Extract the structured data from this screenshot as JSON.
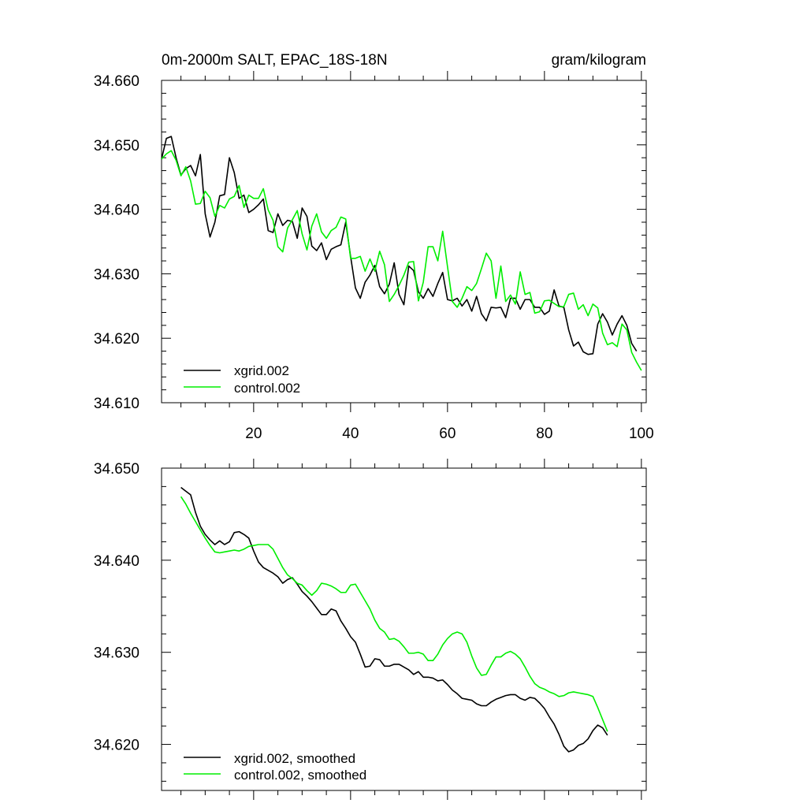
{
  "chart_data": [
    {
      "type": "line",
      "title": "0m-2000m SALT, EPAC_18S-18N",
      "units": "gram/kilogram",
      "xlim": [
        1,
        101
      ],
      "ylim": [
        34.61,
        34.66
      ],
      "x_ticks": [
        20,
        40,
        60,
        80,
        100
      ],
      "x_tick_labels": [
        "20",
        "40",
        "60",
        "80",
        "100"
      ],
      "y_ticks": [
        34.61,
        34.62,
        34.63,
        34.64,
        34.65,
        34.66
      ],
      "y_tick_labels": [
        "34.610",
        "34.620",
        "34.630",
        "34.640",
        "34.650",
        "34.660"
      ],
      "legend_position": "bottom-left",
      "series": [
        {
          "name": "xgrid.002",
          "color": "#000000",
          "x_start": 1,
          "values": [
            34.6478,
            34.651,
            34.6513,
            34.648,
            34.6453,
            34.6463,
            34.6468,
            34.6452,
            34.6485,
            34.6393,
            34.6357,
            34.638,
            34.6421,
            34.6423,
            34.648,
            34.6457,
            34.6417,
            34.6422,
            34.6395,
            34.64,
            34.6407,
            34.6416,
            34.6367,
            34.6364,
            34.6393,
            34.6375,
            34.6383,
            34.6381,
            34.6355,
            34.6402,
            34.6389,
            34.6343,
            34.6336,
            34.6348,
            34.6322,
            34.6338,
            34.6342,
            34.6345,
            34.638,
            34.6327,
            34.6278,
            34.6262,
            34.6287,
            34.6298,
            34.6313,
            34.628,
            34.6269,
            34.6284,
            34.6317,
            34.6268,
            34.6252,
            34.6312,
            34.6305,
            34.6272,
            34.6262,
            34.6277,
            34.6265,
            34.6285,
            34.6302,
            34.626,
            34.6258,
            34.6262,
            34.625,
            34.626,
            34.6242,
            34.6265,
            34.6238,
            34.6227,
            34.6248,
            34.6247,
            34.6248,
            34.6232,
            34.6262,
            34.6262,
            34.6245,
            34.626,
            34.626,
            34.6248,
            34.6248,
            34.6237,
            34.6242,
            34.6275,
            34.625,
            34.6248,
            34.6213,
            34.6188,
            34.6194,
            34.6179,
            34.6175,
            34.6176,
            34.6222,
            34.6238,
            34.6225,
            34.6205,
            34.6222,
            34.6235,
            34.622,
            34.6192,
            34.618
          ]
        },
        {
          "name": "control.002",
          "color": "#00ee00",
          "x_start": 1,
          "values": [
            34.6478,
            34.6486,
            34.6491,
            34.6476,
            34.6452,
            34.6466,
            34.6444,
            34.6408,
            34.6409,
            34.6428,
            34.6418,
            34.6389,
            34.6406,
            34.6402,
            34.6416,
            34.642,
            34.6437,
            34.6403,
            34.6422,
            34.6417,
            34.6417,
            34.6432,
            34.6399,
            34.6383,
            34.6342,
            34.6334,
            34.6371,
            34.6384,
            34.6398,
            34.6362,
            34.6337,
            34.6374,
            34.6393,
            34.6365,
            34.6355,
            34.6367,
            34.6372,
            34.6388,
            34.6385,
            34.6324,
            34.6324,
            34.6327,
            34.6304,
            34.6323,
            34.6304,
            34.6335,
            34.6314,
            34.6257,
            34.6268,
            34.6282,
            34.6298,
            34.6318,
            34.6319,
            34.6258,
            34.6287,
            34.6342,
            34.6342,
            34.632,
            34.6366,
            34.6311,
            34.6257,
            34.6248,
            34.6262,
            34.628,
            34.6274,
            34.6285,
            34.6308,
            34.6332,
            34.632,
            34.6262,
            34.6312,
            34.6257,
            34.6267,
            34.6253,
            34.6303,
            34.6268,
            34.6271,
            34.6239,
            34.6241,
            34.6258,
            34.6259,
            34.6254,
            34.6249,
            34.6249,
            34.6268,
            34.627,
            34.6245,
            34.6252,
            34.6235,
            34.6253,
            34.6247,
            34.6208,
            34.619,
            34.6193,
            34.6187,
            34.6222,
            34.6213,
            34.6178,
            34.6163,
            34.615
          ]
        }
      ]
    },
    {
      "type": "line",
      "title": "",
      "units": "",
      "xlim": [
        1,
        101
      ],
      "ylim": [
        34.615,
        34.65
      ],
      "x_ticks": [
        20,
        40,
        60,
        80,
        100
      ],
      "x_tick_labels": [],
      "y_ticks": [
        34.62,
        34.63,
        34.64,
        34.65
      ],
      "y_tick_labels": [
        "34.620",
        "34.630",
        "34.640",
        "34.650"
      ],
      "legend_position": "bottom-left",
      "series": [
        {
          "name": "xgrid.002, smoothed",
          "color": "#000000",
          "x_start": 5,
          "values": [
            34.6479,
            34.6475,
            34.6471,
            34.6452,
            34.6437,
            34.6428,
            34.6422,
            34.6417,
            34.6421,
            34.6417,
            34.642,
            34.643,
            34.6431,
            34.6428,
            34.6424,
            34.641,
            34.6398,
            34.6392,
            34.6389,
            34.6386,
            34.6382,
            34.6375,
            34.6379,
            34.6381,
            34.6374,
            34.6366,
            34.6361,
            34.6355,
            34.6348,
            34.6341,
            34.6341,
            34.6347,
            34.6345,
            34.6334,
            34.6326,
            34.6317,
            34.6311,
            34.6298,
            34.6284,
            34.6285,
            34.6293,
            34.6292,
            34.6285,
            34.6285,
            34.6287,
            34.6287,
            34.6284,
            34.6281,
            34.6276,
            34.6279,
            34.6273,
            34.6273,
            34.6272,
            34.6269,
            34.627,
            34.6265,
            34.6259,
            34.6255,
            34.625,
            34.6249,
            34.6248,
            34.6244,
            34.6242,
            34.6242,
            34.6246,
            34.6249,
            34.6251,
            34.6253,
            34.6254,
            34.6254,
            34.625,
            34.6248,
            34.6251,
            34.625,
            34.6245,
            34.6239,
            34.623,
            34.6222,
            34.6211,
            34.6198,
            34.6192,
            34.6194,
            34.6199,
            34.6201,
            34.6206,
            34.6215,
            34.6221,
            34.6218,
            34.621
          ]
        },
        {
          "name": "control.002, smoothed",
          "color": "#00ee00",
          "x_start": 5,
          "values": [
            34.6469,
            34.6461,
            34.6451,
            34.6442,
            34.6433,
            34.6424,
            34.6416,
            34.6409,
            34.6408,
            34.6409,
            34.641,
            34.6411,
            34.641,
            34.6412,
            34.6415,
            34.6416,
            34.6417,
            34.6417,
            34.6417,
            34.6412,
            34.6402,
            34.6392,
            34.6384,
            34.638,
            34.6375,
            34.6373,
            34.6367,
            34.6362,
            34.6367,
            34.6375,
            34.6374,
            34.6372,
            34.6369,
            34.6365,
            34.6365,
            34.6373,
            34.6374,
            34.6365,
            34.6356,
            34.6347,
            34.6335,
            34.6326,
            34.6322,
            34.6314,
            34.6315,
            34.6312,
            34.6306,
            34.6299,
            34.6299,
            34.63,
            34.6298,
            34.6291,
            34.6291,
            34.6298,
            34.6308,
            34.6315,
            34.632,
            34.6322,
            34.632,
            34.6311,
            34.6296,
            34.6283,
            34.6275,
            34.6276,
            34.6286,
            34.6295,
            34.6295,
            34.6299,
            34.6301,
            34.6298,
            34.6293,
            34.6284,
            34.6274,
            34.6266,
            34.6262,
            34.626,
            34.6257,
            34.6255,
            34.6252,
            34.6253,
            34.6256,
            34.6257,
            34.6256,
            34.6255,
            34.6254,
            34.6252,
            34.624,
            34.6227,
            34.6214
          ]
        }
      ]
    }
  ]
}
